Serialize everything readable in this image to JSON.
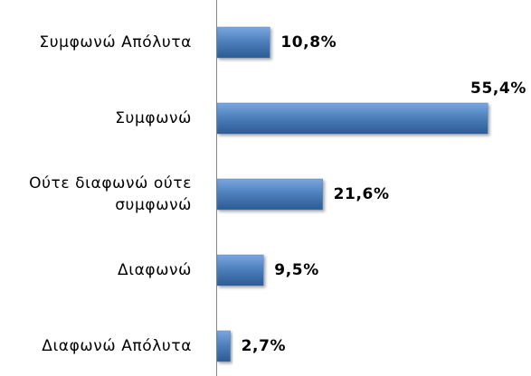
{
  "chart_data": {
    "type": "bar",
    "orientation": "horizontal",
    "categories": [
      "Συμφωνώ Απόλυτα",
      "Συμφωνώ",
      "Ούτε διαφωνώ ούτε συμφωνώ",
      "Διαφωνώ",
      "Διαφωνώ Απόλυτα"
    ],
    "values": [
      10.8,
      55.4,
      21.6,
      9.5,
      2.7
    ],
    "value_labels": [
      "10,8%",
      "55,4%",
      "21,6%",
      "9,5%",
      "2,7%"
    ],
    "color": "#4f81bd"
  }
}
